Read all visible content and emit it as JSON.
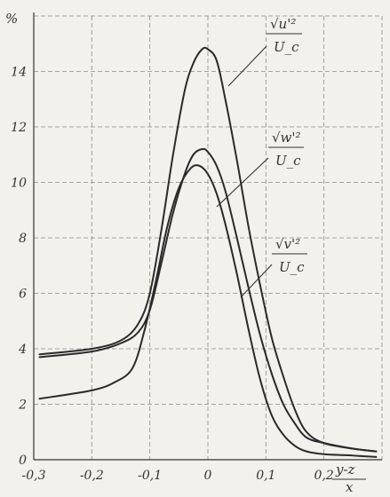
{
  "chart_data": {
    "type": "line",
    "ylabel": "%",
    "xlabel_numerator": "y-z",
    "xlabel_denominator": "x",
    "xlim": [
      -0.3,
      0.3
    ],
    "ylim": [
      0,
      16
    ],
    "x_ticks": [
      "-0,3",
      "-0,2",
      "-0,1",
      "0",
      "0,1",
      "0,2"
    ],
    "y_ticks": [
      "0",
      "2",
      "4",
      "6",
      "8",
      "10",
      "12",
      "14"
    ],
    "grid": true,
    "series": [
      {
        "name": "√u'² / U_c",
        "label_num": "√u'²",
        "label_den": "U_c",
        "x": [
          -0.29,
          -0.2,
          -0.15,
          -0.12,
          -0.1,
          -0.08,
          -0.06,
          -0.04,
          -0.025,
          -0.01,
          0,
          0.015,
          0.03,
          0.05,
          0.07,
          0.09,
          0.11,
          0.13,
          0.15,
          0.17,
          0.2,
          0.25,
          0.29
        ],
        "y": [
          3.8,
          4.0,
          4.3,
          4.9,
          6.0,
          8.3,
          11.0,
          13.3,
          14.3,
          14.8,
          14.8,
          14.4,
          13.0,
          10.8,
          8.4,
          6.3,
          4.4,
          3.0,
          1.8,
          1.0,
          0.6,
          0.4,
          0.3
        ]
      },
      {
        "name": "√w'² / U_c",
        "label_num": "√w'²",
        "label_den": "U_c",
        "x": [
          -0.29,
          -0.2,
          -0.15,
          -0.12,
          -0.1,
          -0.08,
          -0.06,
          -0.04,
          -0.025,
          -0.01,
          0,
          0.015,
          0.03,
          0.05,
          0.07,
          0.09,
          0.11,
          0.13,
          0.15,
          0.17,
          0.2,
          0.25,
          0.29
        ],
        "y": [
          3.7,
          3.9,
          4.2,
          4.6,
          5.4,
          7.1,
          8.9,
          10.3,
          11.0,
          11.2,
          11.1,
          10.6,
          9.7,
          8.0,
          6.2,
          4.5,
          3.1,
          2.0,
          1.3,
          0.8,
          0.6,
          0.4,
          0.3
        ]
      },
      {
        "name": "√v'² / U_c",
        "label_num": "√v'²",
        "label_den": "U_c",
        "x": [
          -0.29,
          -0.2,
          -0.16,
          -0.13,
          -0.11,
          -0.09,
          -0.07,
          -0.05,
          -0.03,
          -0.015,
          0,
          0.015,
          0.03,
          0.05,
          0.07,
          0.09,
          0.11,
          0.13,
          0.15,
          0.17,
          0.2,
          0.25,
          0.29
        ],
        "y": [
          2.2,
          2.5,
          2.8,
          3.3,
          4.6,
          6.4,
          8.4,
          9.8,
          10.5,
          10.6,
          10.3,
          9.6,
          8.5,
          6.7,
          4.7,
          2.9,
          1.6,
          0.9,
          0.5,
          0.3,
          0.2,
          0.15,
          0.1
        ]
      }
    ]
  }
}
